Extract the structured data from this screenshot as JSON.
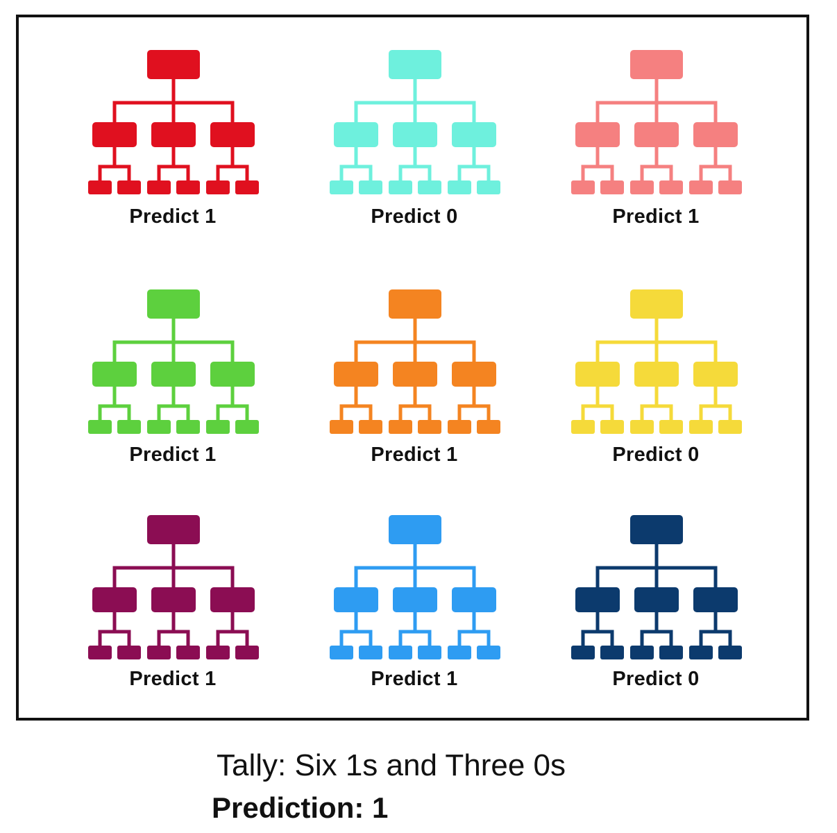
{
  "trees": [
    {
      "label": "Predict 1",
      "color": "#E0101F",
      "icon": "decision-tree-icon"
    },
    {
      "label": "Predict 0",
      "color": "#6EF0DD",
      "icon": "decision-tree-icon"
    },
    {
      "label": "Predict 1",
      "color": "#F58080",
      "icon": "decision-tree-icon"
    },
    {
      "label": "Predict 1",
      "color": "#5DD03E",
      "icon": "decision-tree-icon"
    },
    {
      "label": "Predict 1",
      "color": "#F48421",
      "icon": "decision-tree-icon"
    },
    {
      "label": "Predict 0",
      "color": "#F5DA3A",
      "icon": "decision-tree-icon"
    },
    {
      "label": "Predict 1",
      "color": "#8B0D53",
      "icon": "decision-tree-icon"
    },
    {
      "label": "Predict 1",
      "color": "#2E9CF2",
      "icon": "decision-tree-icon"
    },
    {
      "label": "Predict 0",
      "color": "#0C3A6D",
      "icon": "decision-tree-icon"
    }
  ],
  "summary": {
    "tally": "Tally: Six 1s and Three 0s",
    "prediction": "Prediction: 1"
  }
}
